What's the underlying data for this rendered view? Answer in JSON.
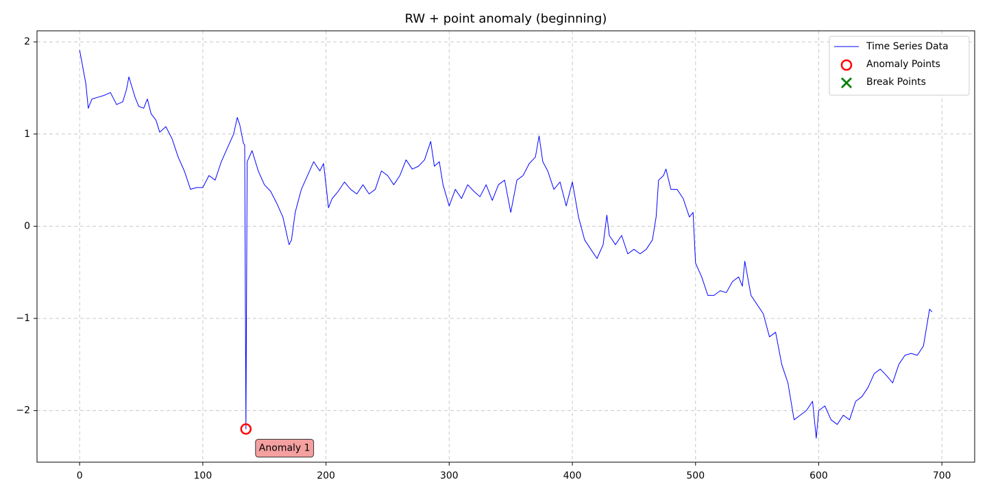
{
  "chart_data": {
    "type": "line",
    "title": "RW + point anomaly (beginning)",
    "xlim": [
      -34.6,
      726.6
    ],
    "ylim": [
      -2.56,
      2.12
    ],
    "xticks": [
      0,
      100,
      200,
      300,
      400,
      500,
      600,
      700
    ],
    "yticks": [
      {
        "value": -2,
        "label": "−2"
      },
      {
        "value": -1,
        "label": "−1"
      },
      0,
      1,
      2
    ],
    "grid": true,
    "legend": "upper right",
    "series": [
      {
        "name": "Time Series Data",
        "type": "line",
        "color": "#0000ff",
        "x": [
          0,
          5,
          7,
          10,
          15,
          20,
          25,
          30,
          35,
          38,
          40,
          45,
          48,
          52,
          55,
          58,
          62,
          65,
          70,
          75,
          80,
          85,
          88,
          90,
          95,
          100,
          105,
          110,
          115,
          120,
          125,
          128,
          130,
          133,
          134,
          135,
          136,
          140,
          145,
          150,
          155,
          160,
          165,
          170,
          172,
          175,
          180,
          185,
          190,
          195,
          198,
          200,
          202,
          205,
          210,
          215,
          220,
          225,
          230,
          235,
          240,
          245,
          250,
          255,
          260,
          265,
          270,
          275,
          280,
          285,
          288,
          292,
          295,
          300,
          305,
          310,
          315,
          320,
          325,
          330,
          335,
          340,
          345,
          350,
          355,
          360,
          365,
          370,
          373,
          376,
          380,
          385,
          390,
          395,
          400,
          405,
          410,
          415,
          420,
          425,
          428,
          430,
          435,
          440,
          445,
          450,
          455,
          460,
          465,
          468,
          470,
          474,
          476,
          480,
          485,
          490,
          495,
          498,
          500,
          505,
          510,
          515,
          520,
          525,
          530,
          535,
          538,
          540,
          545,
          550,
          555,
          560,
          565,
          570,
          575,
          580,
          585,
          590,
          595,
          598,
          600,
          605,
          610,
          615,
          620,
          625,
          630,
          635,
          640,
          645,
          650,
          655,
          660,
          665,
          670,
          675,
          680,
          685,
          690,
          692
        ],
        "values": [
          1.91,
          1.55,
          1.28,
          1.38,
          1.4,
          1.42,
          1.45,
          1.32,
          1.35,
          1.48,
          1.62,
          1.4,
          1.3,
          1.28,
          1.38,
          1.22,
          1.15,
          1.02,
          1.08,
          0.95,
          0.75,
          0.6,
          0.48,
          0.4,
          0.42,
          0.42,
          0.55,
          0.5,
          0.7,
          0.85,
          1.0,
          1.18,
          1.1,
          0.9,
          0.88,
          -2.2,
          0.7,
          0.82,
          0.6,
          0.45,
          0.38,
          0.25,
          0.1,
          -0.2,
          -0.15,
          0.15,
          0.4,
          0.55,
          0.7,
          0.6,
          0.68,
          0.45,
          0.2,
          0.3,
          0.38,
          0.48,
          0.4,
          0.35,
          0.45,
          0.35,
          0.4,
          0.6,
          0.55,
          0.45,
          0.55,
          0.72,
          0.62,
          0.65,
          0.72,
          0.92,
          0.65,
          0.7,
          0.45,
          0.22,
          0.4,
          0.3,
          0.45,
          0.38,
          0.32,
          0.45,
          0.28,
          0.45,
          0.5,
          0.15,
          0.5,
          0.55,
          0.68,
          0.75,
          0.98,
          0.7,
          0.6,
          0.4,
          0.48,
          0.22,
          0.48,
          0.1,
          -0.15,
          -0.25,
          -0.35,
          -0.2,
          0.12,
          -0.1,
          -0.2,
          -0.1,
          -0.3,
          -0.25,
          -0.3,
          -0.25,
          -0.15,
          0.1,
          0.5,
          0.55,
          0.62,
          0.4,
          0.4,
          0.3,
          0.1,
          0.15,
          -0.4,
          -0.55,
          -0.75,
          -0.75,
          -0.7,
          -0.72,
          -0.6,
          -0.55,
          -0.65,
          -0.38,
          -0.75,
          -0.85,
          -0.95,
          -1.2,
          -1.15,
          -1.5,
          -1.7,
          -2.1,
          -2.05,
          -2.0,
          -1.9,
          -2.3,
          -2.0,
          -1.95,
          -2.1,
          -2.15,
          -2.05,
          -2.1,
          -1.9,
          -1.85,
          -1.75,
          -1.6,
          -1.55,
          -1.62,
          -1.7,
          -1.5,
          -1.4,
          -1.38,
          -1.4,
          -1.3,
          -0.9,
          -0.93
        ]
      },
      {
        "name": "Anomaly Points",
        "type": "circle",
        "color": "#ff0000",
        "x": [
          135
        ],
        "values": [
          -2.2
        ]
      },
      {
        "name": "Break Points",
        "type": "cross",
        "color": "#008000",
        "x": [],
        "values": []
      }
    ],
    "annotations": [
      {
        "text": "Anomaly 1",
        "x": 135,
        "y": -2.2
      }
    ]
  }
}
